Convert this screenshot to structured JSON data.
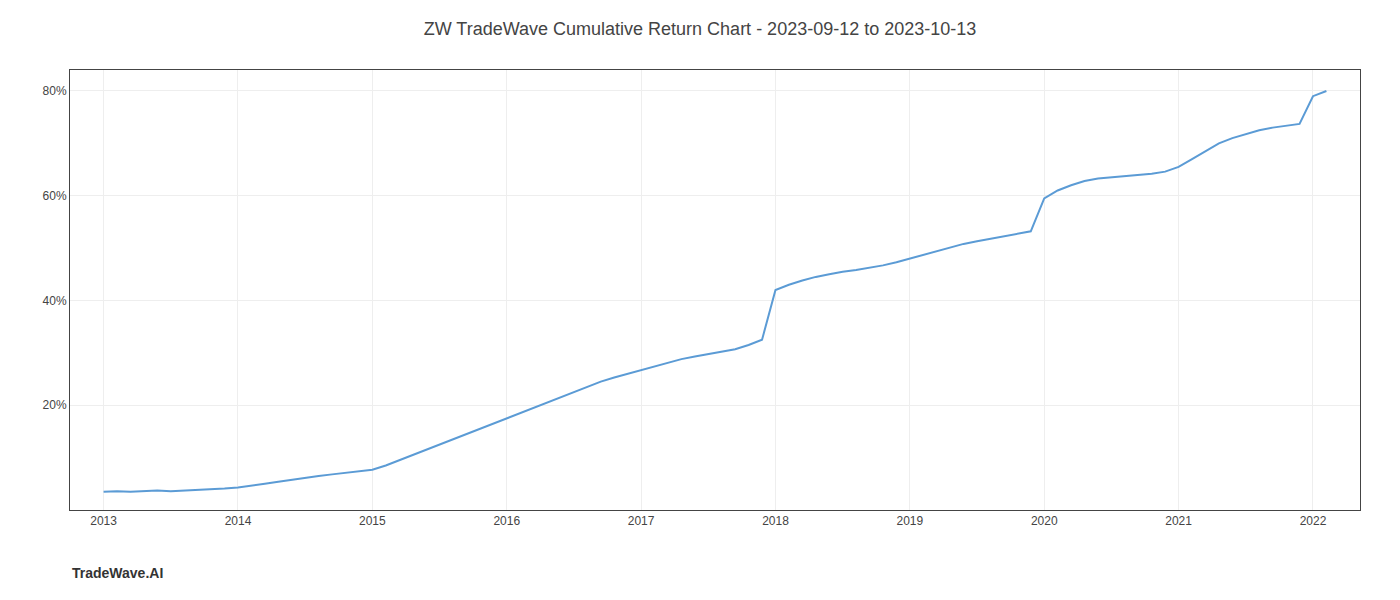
{
  "chart_data": {
    "type": "line",
    "title": "ZW TradeWave Cumulative Return Chart - 2023-09-12 to 2023-10-13",
    "annotations": [
      "TradeWave.AI"
    ],
    "color": "#5b9bd5",
    "x": [
      2013.0,
      2013.1,
      2013.2,
      2013.3,
      2013.4,
      2013.5,
      2013.6,
      2013.7,
      2013.8,
      2013.9,
      2014.0,
      2014.1,
      2014.2,
      2014.3,
      2014.4,
      2014.5,
      2014.6,
      2014.7,
      2014.8,
      2014.9,
      2015.0,
      2015.1,
      2015.2,
      2015.3,
      2015.4,
      2015.5,
      2015.6,
      2015.7,
      2015.8,
      2015.9,
      2016.0,
      2016.1,
      2016.2,
      2016.3,
      2016.4,
      2016.5,
      2016.6,
      2016.7,
      2016.8,
      2016.9,
      2017.0,
      2017.1,
      2017.2,
      2017.3,
      2017.4,
      2017.5,
      2017.6,
      2017.7,
      2017.8,
      2017.9,
      2018.0,
      2018.1,
      2018.2,
      2018.3,
      2018.4,
      2018.5,
      2018.6,
      2018.7,
      2018.8,
      2018.9,
      2019.0,
      2019.1,
      2019.2,
      2019.3,
      2019.4,
      2019.5,
      2019.6,
      2019.7,
      2019.8,
      2019.9,
      2020.0,
      2020.1,
      2020.2,
      2020.3,
      2020.4,
      2020.5,
      2020.6,
      2020.7,
      2020.8,
      2020.9,
      2021.0,
      2021.1,
      2021.2,
      2021.3,
      2021.4,
      2021.5,
      2021.6,
      2021.7,
      2021.8,
      2021.9,
      2022.0,
      2022.1
    ],
    "values": [
      3.5,
      3.6,
      3.5,
      3.6,
      3.7,
      3.6,
      3.7,
      3.8,
      3.9,
      4.1,
      4.3,
      4.6,
      5.0,
      5.4,
      5.8,
      6.2,
      6.5,
      6.8,
      7.1,
      7.4,
      7.7,
      8.5,
      9.5,
      10.5,
      11.5,
      12.5,
      13.5,
      14.5,
      15.5,
      16.5,
      17.5,
      18.5,
      19.5,
      20.5,
      21.5,
      22.5,
      23.5,
      24.5,
      25.3,
      26.0,
      26.8,
      27.5,
      28.2,
      28.8,
      29.3,
      29.8,
      30.2,
      30.7,
      31.5,
      32.5,
      42.0,
      43.0,
      43.8,
      44.5,
      45.0,
      45.5,
      45.8,
      46.2,
      46.7,
      47.3,
      48.0,
      48.8,
      49.5,
      50.2,
      50.8,
      51.3,
      51.8,
      52.3,
      52.7,
      53.2,
      59.5,
      61.0,
      62.0,
      62.8,
      63.3,
      63.5,
      63.7,
      63.9,
      64.2,
      64.6,
      65.5,
      67.0,
      68.5,
      70.0,
      71.0,
      71.8,
      72.5,
      73.0,
      73.3,
      73.7,
      79.0,
      80.0
    ],
    "xlim": [
      2012.75,
      2022.35
    ],
    "xticks": [
      2013,
      2014,
      2015,
      2016,
      2017,
      2018,
      2019,
      2020,
      2021,
      2022
    ],
    "ylim": [
      0,
      84
    ],
    "yticks": [
      {
        "value": 20,
        "label": "20%"
      },
      {
        "value": 40,
        "label": "40%"
      },
      {
        "value": 60,
        "label": "60%"
      },
      {
        "value": 80,
        "label": "80%"
      }
    ],
    "grid": true
  }
}
